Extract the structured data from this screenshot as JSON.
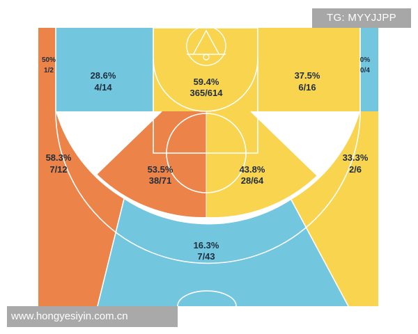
{
  "chart_data": {
    "type": "shot-chart",
    "zones": [
      {
        "id": "left-corner-3",
        "pct": "50%",
        "made_att": "1/2",
        "color": "#ec8348"
      },
      {
        "id": "left-mid-baseline",
        "pct": "28.6%",
        "made_att": "4/14",
        "color": "#72c6de"
      },
      {
        "id": "restricted-area",
        "pct": "59.4%",
        "made_att": "365/614",
        "color": "#f9d44e"
      },
      {
        "id": "right-mid-baseline",
        "pct": "37.5%",
        "made_att": "6/16",
        "color": "#f9d44e"
      },
      {
        "id": "right-corner-3",
        "pct": "0%",
        "made_att": "0/4",
        "color": "#72c6de"
      },
      {
        "id": "left-wing-3",
        "pct": "58.3%",
        "made_att": "7/12",
        "color": "#ec8348"
      },
      {
        "id": "left-paint",
        "pct": "53.5%",
        "made_att": "38/71",
        "color": "#ec8348"
      },
      {
        "id": "right-paint",
        "pct": "43.8%",
        "made_att": "28/64",
        "color": "#f9d44e"
      },
      {
        "id": "right-wing-3",
        "pct": "33.3%",
        "made_att": "2/6",
        "color": "#f9d44e"
      },
      {
        "id": "top-key-3",
        "pct": "16.3%",
        "made_att": "7/43",
        "color": "#72c6de"
      }
    ]
  },
  "watermarks": {
    "top": "TG: MYYJJPP",
    "bottom": "www.hongyesiyin.com.cn"
  }
}
